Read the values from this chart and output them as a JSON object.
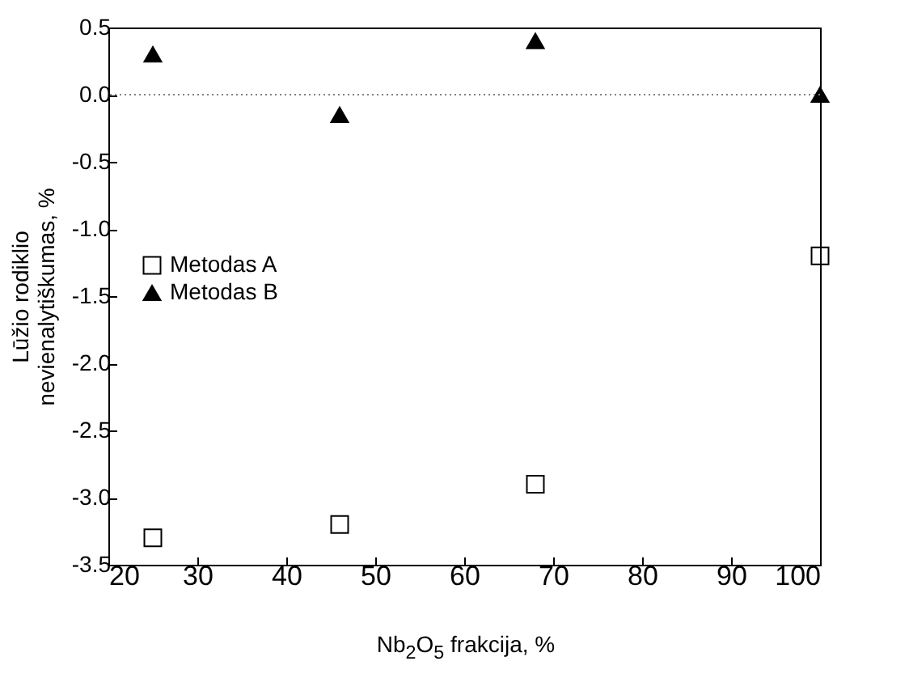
{
  "chart_data": {
    "type": "scatter",
    "xlabel": "Nb$_{2}$O$_{5}$ frakcija, %",
    "ylabel": "Lūžio rodiklio\nnevienalytiškumas, %",
    "x": [
      25,
      46,
      68,
      100
    ],
    "series": [
      {
        "name": "Metodas A",
        "color": "#000000",
        "marker": "square",
        "values": [
          -3.3,
          -3.2,
          -2.9,
          -1.2
        ]
      },
      {
        "name": "Metodas B",
        "color": "#000000",
        "marker": "triangle",
        "values": [
          0.3,
          -0.15,
          0.4,
          0.0
        ]
      }
    ],
    "xlim": [
      20,
      100
    ],
    "xticks": [
      20,
      30,
      40,
      50,
      60,
      70,
      80,
      90,
      100
    ],
    "ylim": [
      -3.5,
      0.5
    ],
    "yticks": [
      {
        "value": -3.5,
        "label": "-3.5"
      },
      {
        "value": -3,
        "label": "-3.0"
      },
      {
        "value": -2.5,
        "label": "-2.5"
      },
      {
        "value": -2,
        "label": "-2.0"
      },
      {
        "value": -1.5,
        "label": "-1.5"
      },
      {
        "value": -1,
        "label": "-1.0"
      },
      {
        "value": -0.5,
        "label": "-0.5"
      },
      {
        "value": 0,
        "label": "0.0"
      },
      {
        "value": 0.5,
        "label": "0.5"
      }
    ],
    "ref_lines": [
      {
        "axis": "y",
        "value": 0,
        "color": "#808080",
        "line_style": "dotted"
      }
    ],
    "legend": "left",
    "grid": false
  }
}
